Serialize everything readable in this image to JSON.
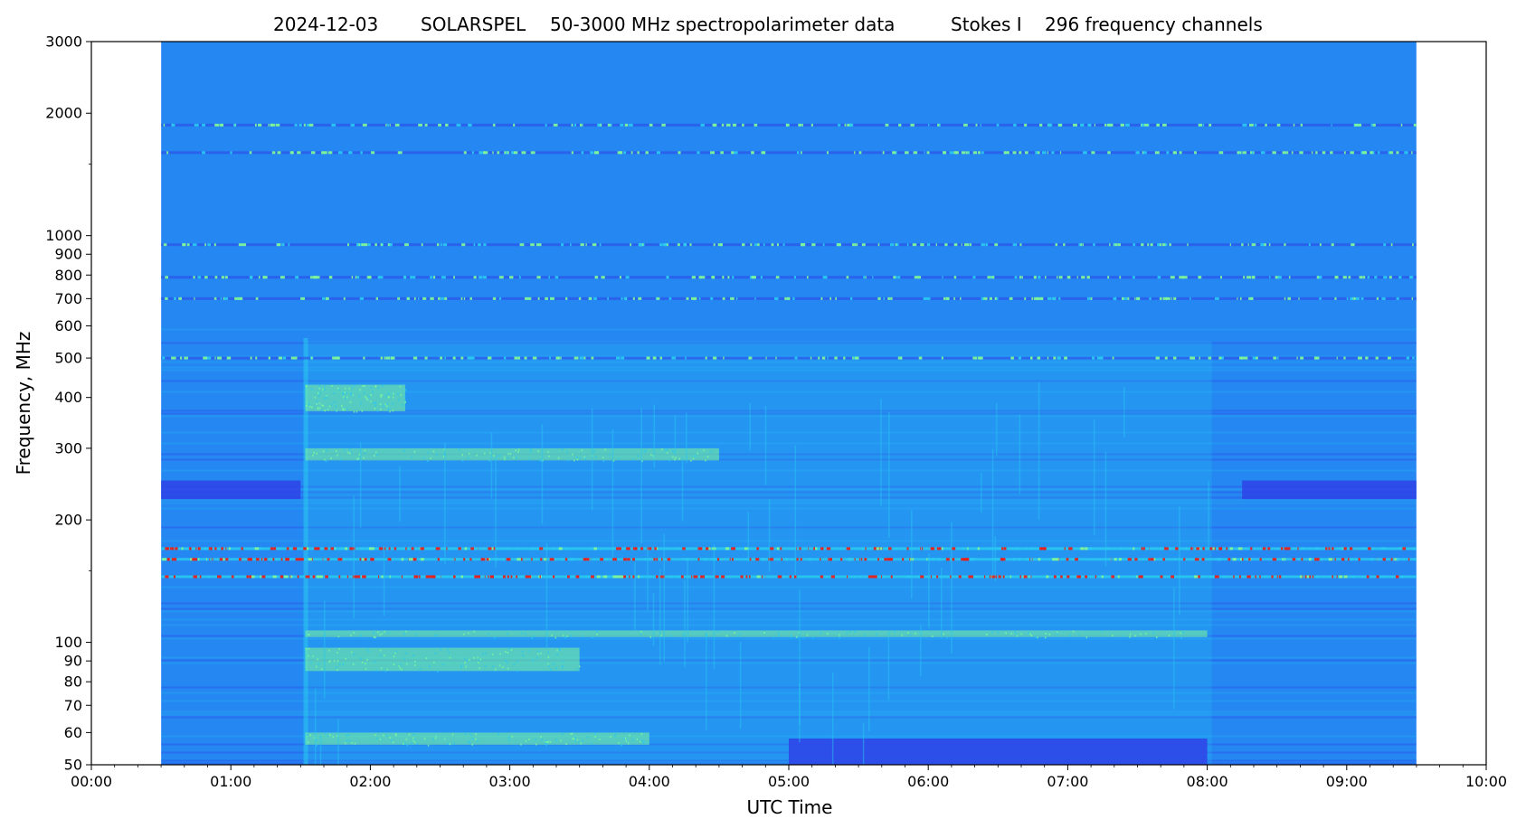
{
  "chart_data": {
    "type": "heatmap",
    "title_parts": {
      "date": "2024-12-03",
      "instrument": "SOLARSPEL",
      "description": "50-3000 MHz spectropolarimeter data",
      "stokes": "Stokes I",
      "channels": "296 frequency channels"
    },
    "xlabel": "UTC Time",
    "ylabel": "Frequency, MHz",
    "x_scale": "time",
    "y_scale": "log",
    "xlim": [
      "00:00",
      "10:00"
    ],
    "ylim": [
      50,
      3000
    ],
    "x_ticks": [
      "00:00",
      "01:00",
      "02:00",
      "03:00",
      "04:00",
      "05:00",
      "06:00",
      "07:00",
      "08:00",
      "09:00",
      "10:00"
    ],
    "y_ticks": [
      50,
      60,
      70,
      80,
      90,
      100,
      200,
      300,
      400,
      500,
      600,
      700,
      800,
      900,
      1000,
      2000,
      3000
    ],
    "y_tick_labels": [
      "50",
      "60",
      "70",
      "80",
      "90",
      "100",
      "200",
      "300",
      "400",
      "500",
      "600",
      "700",
      "800",
      "900",
      "1000",
      "2000",
      "3000"
    ],
    "data_time_range": [
      "00:30",
      "09:30"
    ],
    "colormap": "jet",
    "colors": {
      "background": "#2487f2",
      "low": "#2f43e8",
      "mid": "#29c8f0",
      "high": "#7df79a",
      "peak": "#e8201c"
    },
    "features": {
      "burst_onset": "01:32",
      "burst_end": "08:02",
      "rfi_lines_mhz": [
        1870,
        1600,
        950,
        790,
        700,
        500,
        170,
        160,
        145
      ],
      "strong_rfi_mhz": [
        170,
        160,
        145
      ],
      "band_low_segments": [
        {
          "freq": [
            225,
            250
          ],
          "time": [
            "00:30",
            "01:30"
          ]
        },
        {
          "freq": [
            225,
            250
          ],
          "time": [
            "08:15",
            "09:30"
          ]
        },
        {
          "freq": [
            50,
            58
          ],
          "time": [
            "05:00",
            "08:00"
          ]
        }
      ],
      "band_bright_segments": [
        {
          "freq": [
            56,
            60
          ],
          "time": [
            "01:32",
            "04:00"
          ]
        },
        {
          "freq": [
            85,
            97
          ],
          "time": [
            "01:32",
            "03:30"
          ]
        },
        {
          "freq": [
            103,
            107
          ],
          "time": [
            "01:32",
            "08:00"
          ]
        },
        {
          "freq": [
            370,
            430
          ],
          "time": [
            "01:32",
            "02:15"
          ]
        },
        {
          "freq": [
            280,
            300
          ],
          "time": [
            "01:32",
            "04:30"
          ]
        }
      ]
    }
  }
}
